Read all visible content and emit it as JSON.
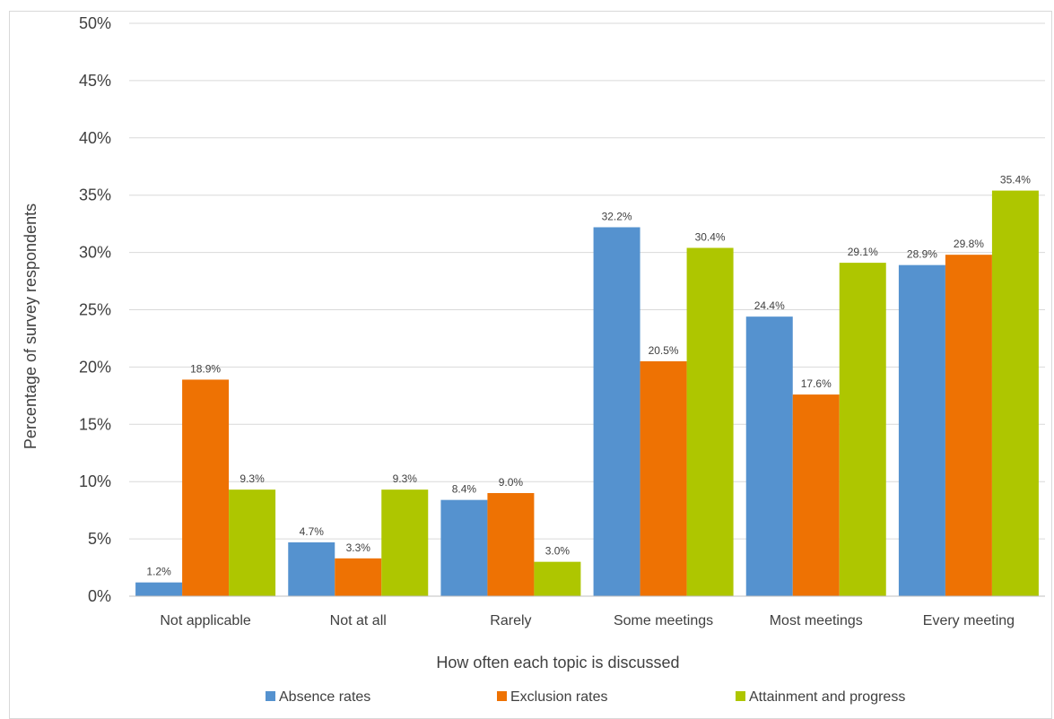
{
  "chart_data": {
    "type": "bar",
    "title": "",
    "xlabel": "How often each topic is discussed",
    "ylabel": "Percentage of survey respondents",
    "ylim": [
      0,
      50
    ],
    "yticks": [
      0,
      5,
      10,
      15,
      20,
      25,
      30,
      35,
      40,
      45,
      50
    ],
    "ytick_labels": [
      "0%",
      "5%",
      "10%",
      "15%",
      "20%",
      "25%",
      "30%",
      "35%",
      "40%",
      "45%",
      "50%"
    ],
    "grid": true,
    "legend_position": "bottom",
    "categories": [
      "Not applicable",
      "Not at all",
      "Rarely",
      "Some meetings",
      "Most meetings",
      "Every meeting"
    ],
    "series": [
      {
        "name": "Absence rates",
        "color": "#5592cf",
        "values": [
          1.2,
          4.7,
          8.4,
          32.2,
          24.4,
          28.9
        ],
        "labels": [
          "1.2%",
          "4.7%",
          "8.4%",
          "32.2%",
          "24.4%",
          "28.9%"
        ]
      },
      {
        "name": "Exclusion rates",
        "color": "#ee7203",
        "values": [
          18.9,
          3.3,
          9.0,
          20.5,
          17.6,
          29.8
        ],
        "labels": [
          "18.9%",
          "3.3%",
          "9.0%",
          "20.5%",
          "17.6%",
          "29.8%"
        ]
      },
      {
        "name": "Attainment and progress",
        "color": "#aec600",
        "values": [
          9.3,
          9.3,
          3.0,
          30.4,
          29.1,
          35.4
        ],
        "labels": [
          "9.3%",
          "9.3%",
          "3.0%",
          "30.4%",
          "29.1%",
          "35.4%"
        ]
      }
    ]
  }
}
